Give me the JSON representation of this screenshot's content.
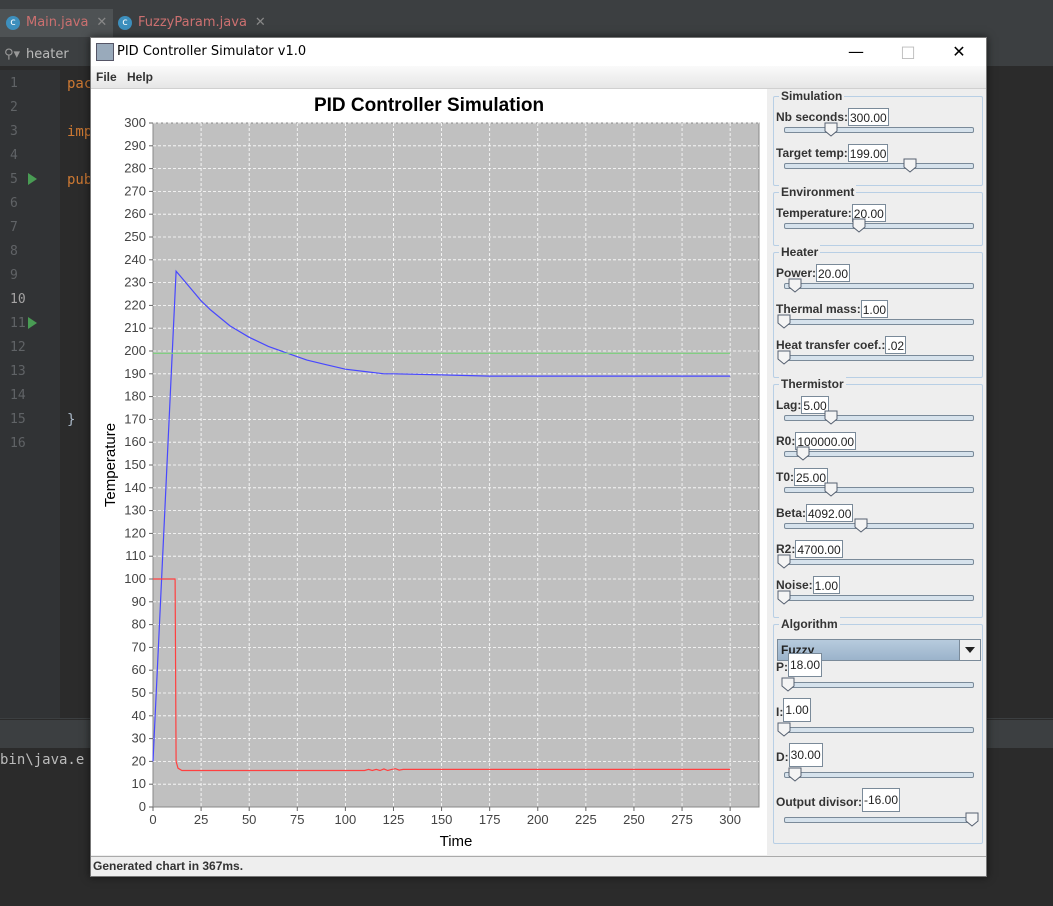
{
  "ide": {
    "tabs": [
      {
        "label": "Main.java",
        "icon": "class-icon",
        "close": "✕"
      },
      {
        "label": "FuzzyParam.java",
        "icon": "class-icon",
        "close": "✕"
      }
    ],
    "search": {
      "value": "heater"
    },
    "line_numbers": [
      "1",
      "2",
      "3",
      "4",
      "5",
      "6",
      "7",
      "8",
      "9",
      "10",
      "11",
      "12",
      "13",
      "14",
      "15",
      "16"
    ],
    "code_fragments": {
      "line1": "pac",
      "line3": "imp",
      "line5": "pub",
      "line15": "}"
    },
    "console_text": "bin\\java.e"
  },
  "window": {
    "title": "PID Controller Simulator v1.0",
    "menu": [
      "File",
      "Help"
    ],
    "status": "Generated chart in 367ms."
  },
  "chart_data": {
    "type": "line",
    "title": "PID Controller Simulation",
    "xlabel": "Time",
    "ylabel": "Temperature",
    "xlim": [
      0,
      315
    ],
    "ylim": [
      0,
      300
    ],
    "xticks": [
      0,
      25,
      50,
      75,
      100,
      125,
      150,
      175,
      200,
      225,
      250,
      275,
      300
    ],
    "yticks": [
      0,
      10,
      20,
      30,
      40,
      50,
      60,
      70,
      80,
      90,
      100,
      110,
      120,
      130,
      140,
      150,
      160,
      170,
      180,
      190,
      200,
      210,
      220,
      230,
      240,
      250,
      260,
      270,
      280,
      290,
      300
    ],
    "background": "#c0c0c0",
    "grid": true,
    "series": [
      {
        "name": "temperature",
        "color": "#4848ff",
        "x": [
          0,
          12,
          15,
          20,
          25,
          30,
          40,
          50,
          60,
          70,
          80,
          90,
          100,
          110,
          120,
          125,
          150,
          175,
          200,
          250,
          300
        ],
        "y": [
          20,
          235,
          232,
          227,
          222,
          218,
          211,
          206,
          202,
          199,
          196,
          194,
          192,
          191,
          190,
          190,
          189.5,
          189,
          189,
          189,
          189
        ]
      },
      {
        "name": "target",
        "color": "#7ad07a",
        "x": [
          0,
          300
        ],
        "y": [
          199,
          199
        ]
      },
      {
        "name": "heater",
        "color": "#ff4040",
        "x": [
          0,
          11.5,
          12,
          13,
          15,
          100,
          110,
          112,
          114,
          116,
          118,
          120,
          122,
          124,
          126,
          128,
          130,
          300
        ],
        "y": [
          100,
          100,
          20,
          17,
          16,
          16,
          16,
          16.5,
          16,
          16.5,
          16,
          16.7,
          16,
          16.5,
          16.8,
          16.2,
          16.5,
          16.5
        ]
      }
    ]
  },
  "side": {
    "simulation": {
      "title": "Simulation",
      "fields": [
        {
          "label": "Nb seconds:",
          "value": "300.00",
          "slider": 0.25
        },
        {
          "label": "Target temp:",
          "value": "199.00",
          "slider": 0.67
        }
      ]
    },
    "environment": {
      "title": "Environment",
      "fields": [
        {
          "label": "Temperature:",
          "value": "20.00",
          "slider": 0.4
        }
      ]
    },
    "heater": {
      "title": "Heater",
      "fields": [
        {
          "label": "Power:",
          "value": "20.00",
          "slider": 0.06
        },
        {
          "label": "Thermal mass:",
          "value": "1.00",
          "slider": 0.0
        },
        {
          "label": "Heat transfer coef.:",
          "value": ".02",
          "slider": 0.0
        }
      ]
    },
    "thermistor": {
      "title": "Thermistor",
      "fields": [
        {
          "label": "Lag:",
          "value": "5.00",
          "slider": 0.25
        },
        {
          "label": "R0:",
          "value": "100000.00",
          "slider": 0.1
        },
        {
          "label": "T0:",
          "value": "25.00",
          "slider": 0.25
        },
        {
          "label": "Beta:",
          "value": "4092.00",
          "slider": 0.41
        },
        {
          "label": "R2:",
          "value": "4700.00",
          "slider": 0.0
        },
        {
          "label": "Noise:",
          "value": "1.00",
          "slider": 0.0
        }
      ]
    },
    "algorithm": {
      "title": "Algorithm",
      "selected": "Fuzzy",
      "fields": [
        {
          "label": "P:",
          "value": "18.00",
          "slider": 0.02
        },
        {
          "label": "I:",
          "value": "1.00",
          "slider": 0.0
        },
        {
          "label": "D:",
          "value": "30.00",
          "slider": 0.06
        },
        {
          "label": "Output divisor:",
          "value": "-16.00",
          "slider": 1.0
        }
      ]
    }
  }
}
